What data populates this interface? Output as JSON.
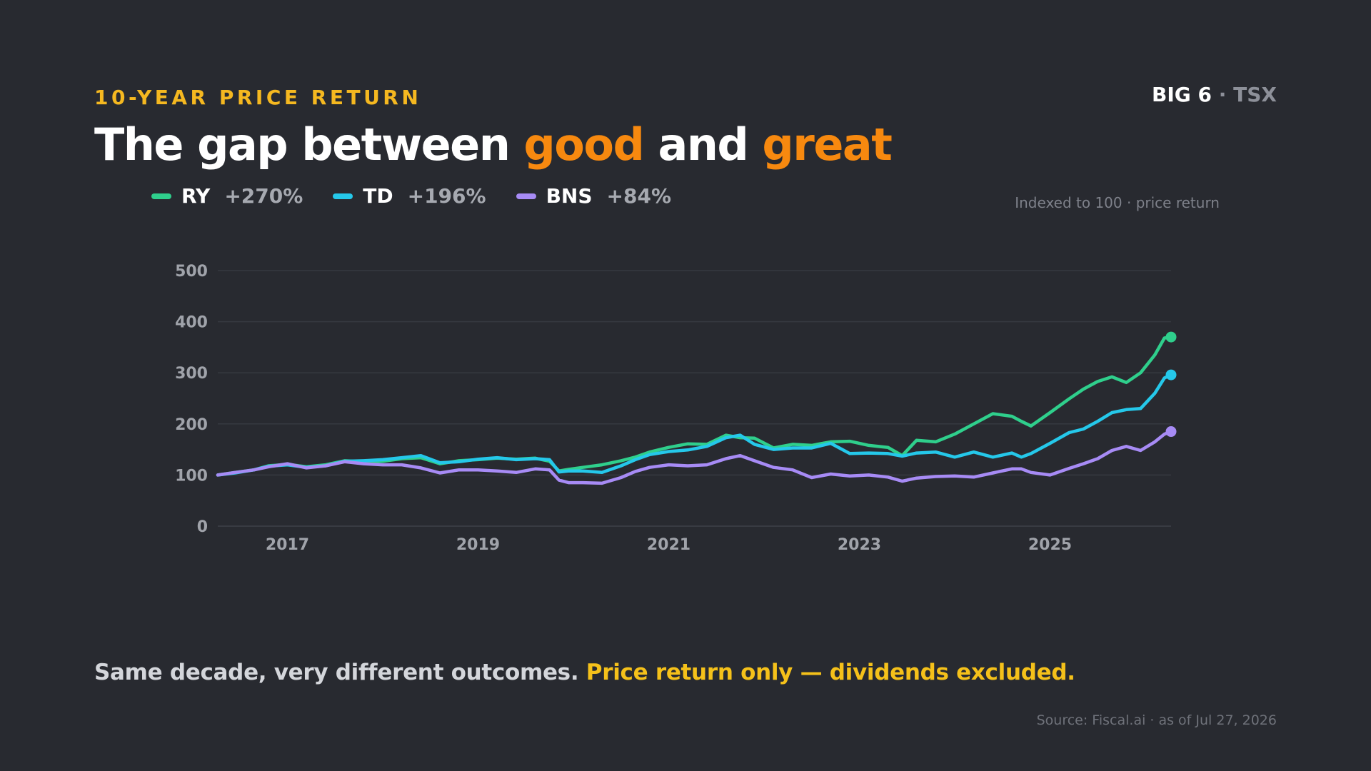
{
  "header": {
    "kicker": "10-YEAR PRICE RETURN",
    "brand_bold": "BIG 6",
    "brand_rest": " · TSX",
    "title_part1": "The gap between ",
    "title_hl1": "good",
    "title_part2": " and ",
    "title_hl2": "great",
    "note": "Indexed to 100 · price return"
  },
  "legend": [
    {
      "name": "RY",
      "value": "+270%",
      "color": "#2fcf8c"
    },
    {
      "name": "TD",
      "value": "+196%",
      "color": "#25c8ea"
    },
    {
      "name": "BNS",
      "value": "+84%",
      "color": "#a78bf5"
    }
  ],
  "footer": {
    "caption_plain": "Same decade, very different outcomes. ",
    "caption_highlight": "Price return only — dividends excluded.",
    "source": "Source: Fiscal.ai · as of Jul 27, 2026"
  },
  "colors": {
    "background": "#282a30",
    "accent_yellow": "#f5b820",
    "accent_orange": "#f7890f",
    "ry": "#2fcf8c",
    "td": "#25c8ea",
    "bns": "#a78bf5"
  },
  "chart_data": {
    "type": "line",
    "ylim": [
      0,
      500
    ],
    "yticks": [
      0,
      100,
      200,
      300,
      400,
      500
    ],
    "xlim": [
      2016.57,
      2026.57
    ],
    "xticks": [
      "2017",
      "2019",
      "2021",
      "2023",
      "2025"
    ],
    "grid": true,
    "end_markers": true,
    "series": [
      {
        "name": "RY",
        "color": "#2fcf8c",
        "x": [
          2016.57,
          2016.75,
          2016.95,
          2017.1,
          2017.3,
          2017.5,
          2017.7,
          2017.9,
          2018.1,
          2018.3,
          2018.5,
          2018.7,
          2018.9,
          2019.1,
          2019.3,
          2019.5,
          2019.7,
          2019.9,
          2020.05,
          2020.15,
          2020.25,
          2020.4,
          2020.6,
          2020.8,
          2020.95,
          2021.1,
          2021.3,
          2021.5,
          2021.7,
          2021.9,
          2022.05,
          2022.2,
          2022.4,
          2022.6,
          2022.8,
          2023.0,
          2023.2,
          2023.4,
          2023.6,
          2023.75,
          2023.9,
          2024.1,
          2024.3,
          2024.5,
          2024.7,
          2024.9,
          2025.0,
          2025.1,
          2025.3,
          2025.5,
          2025.65,
          2025.8,
          2025.95,
          2026.1,
          2026.25,
          2026.4,
          2026.5,
          2026.57
        ],
        "y": [
          100,
          105,
          110,
          118,
          121,
          116,
          120,
          128,
          126,
          127,
          132,
          134,
          122,
          128,
          130,
          133,
          131,
          133,
          127,
          108,
          111,
          115,
          120,
          128,
          135,
          145,
          154,
          161,
          160,
          178,
          173,
          172,
          153,
          160,
          158,
          165,
          166,
          158,
          154,
          138,
          168,
          165,
          180,
          200,
          220,
          215,
          205,
          196,
          222,
          249,
          268,
          283,
          292,
          281,
          300,
          335,
          368,
          370
        ]
      },
      {
        "name": "TD",
        "color": "#25c8ea",
        "x": [
          2016.57,
          2016.75,
          2016.95,
          2017.1,
          2017.3,
          2017.5,
          2017.7,
          2017.9,
          2018.1,
          2018.3,
          2018.5,
          2018.7,
          2018.9,
          2019.1,
          2019.3,
          2019.5,
          2019.7,
          2019.9,
          2020.05,
          2020.15,
          2020.25,
          2020.4,
          2020.6,
          2020.8,
          2020.95,
          2021.1,
          2021.3,
          2021.5,
          2021.7,
          2021.9,
          2022.05,
          2022.2,
          2022.4,
          2022.6,
          2022.8,
          2023.0,
          2023.2,
          2023.4,
          2023.6,
          2023.75,
          2023.9,
          2024.1,
          2024.3,
          2024.5,
          2024.7,
          2024.9,
          2025.0,
          2025.1,
          2025.3,
          2025.5,
          2025.65,
          2025.8,
          2025.95,
          2026.1,
          2026.25,
          2026.4,
          2026.5,
          2026.57
        ],
        "y": [
          100,
          104,
          110,
          117,
          120,
          115,
          118,
          127,
          128,
          130,
          134,
          138,
          124,
          126,
          131,
          134,
          130,
          132,
          130,
          106,
          108,
          108,
          105,
          118,
          130,
          140,
          146,
          149,
          156,
          173,
          178,
          160,
          150,
          153,
          153,
          162,
          142,
          143,
          142,
          137,
          143,
          145,
          135,
          145,
          135,
          143,
          135,
          142,
          162,
          183,
          190,
          205,
          222,
          228,
          230,
          260,
          290,
          296
        ]
      },
      {
        "name": "BNS",
        "color": "#a78bf5",
        "x": [
          2016.57,
          2016.75,
          2016.95,
          2017.1,
          2017.3,
          2017.5,
          2017.7,
          2017.9,
          2018.1,
          2018.3,
          2018.5,
          2018.7,
          2018.9,
          2019.1,
          2019.3,
          2019.5,
          2019.7,
          2019.9,
          2020.05,
          2020.15,
          2020.25,
          2020.4,
          2020.6,
          2020.8,
          2020.95,
          2021.1,
          2021.3,
          2021.5,
          2021.7,
          2021.9,
          2022.05,
          2022.2,
          2022.4,
          2022.6,
          2022.8,
          2023.0,
          2023.2,
          2023.4,
          2023.6,
          2023.75,
          2023.9,
          2024.1,
          2024.3,
          2024.5,
          2024.7,
          2024.9,
          2025.0,
          2025.1,
          2025.3,
          2025.5,
          2025.65,
          2025.8,
          2025.95,
          2026.1,
          2026.25,
          2026.4,
          2026.5,
          2026.57
        ],
        "y": [
          100,
          105,
          110,
          116,
          122,
          114,
          118,
          126,
          122,
          120,
          120,
          114,
          104,
          110,
          110,
          108,
          105,
          112,
          110,
          90,
          85,
          85,
          84,
          95,
          107,
          115,
          120,
          118,
          120,
          132,
          138,
          128,
          115,
          110,
          95,
          102,
          98,
          100,
          96,
          88,
          94,
          97,
          98,
          96,
          104,
          112,
          112,
          105,
          100,
          113,
          122,
          132,
          148,
          156,
          148,
          165,
          180,
          185
        ]
      }
    ]
  }
}
